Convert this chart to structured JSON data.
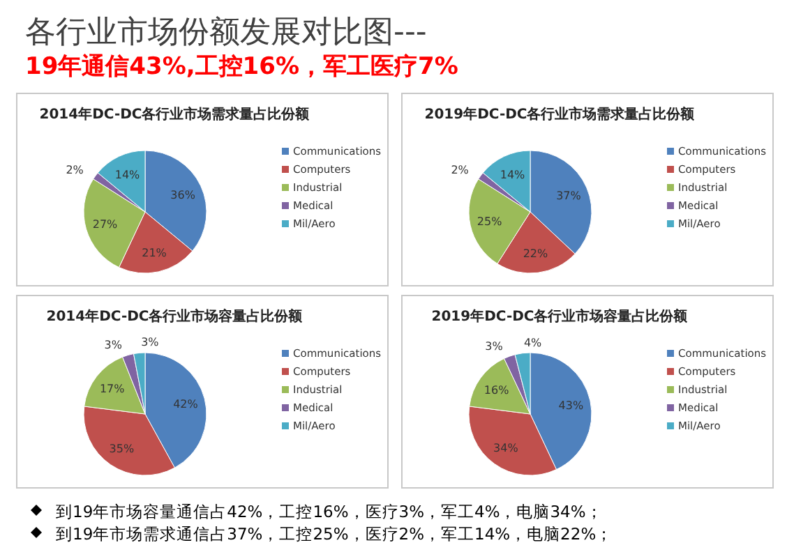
{
  "chart_data": [
    {
      "type": "other",
      "title": "各行业市场份额发展对比图---",
      "subtitle": "19年通信43%,工控16%，军工医疗7%",
      "annotations": [
        "到19年市场容量通信占42%，工控16%，医疗3%，军工4%，电脑34%；",
        "到19年市场需求通信占37%，工控25%，医疗2%，军工14%，电脑22%；"
      ]
    },
    {
      "type": "pie",
      "title": "2014年DC-DC各行业市场需求量占比份额",
      "categories": [
        "Communications",
        "Computers",
        "Industrial",
        "Medical",
        "Mil/Aero"
      ],
      "values": [
        36,
        21,
        27,
        2,
        14
      ],
      "value_labels": [
        "36%",
        "21%",
        "27%",
        "2%",
        "14%"
      ],
      "colors": [
        "#4f81bd",
        "#c0504d",
        "#9bbb59",
        "#8064a2",
        "#4bacc6"
      ],
      "legend": "right"
    },
    {
      "type": "pie",
      "title": "2019年DC-DC各行业市场需求量占比份额",
      "categories": [
        "Communications",
        "Computers",
        "Industrial",
        "Medical",
        "Mil/Aero"
      ],
      "values": [
        37,
        22,
        25,
        2,
        14
      ],
      "value_labels": [
        "37%",
        "22%",
        "25%",
        "2%",
        "14%"
      ],
      "colors": [
        "#4f81bd",
        "#c0504d",
        "#9bbb59",
        "#8064a2",
        "#4bacc6"
      ],
      "legend": "right"
    },
    {
      "type": "pie",
      "title": "2014年DC-DC各行业市场容量占比份额",
      "categories": [
        "Communications",
        "Computers",
        "Industrial",
        "Medical",
        "Mil/Aero"
      ],
      "values": [
        42,
        35,
        17,
        3,
        3
      ],
      "value_labels": [
        "42%",
        "35%",
        "17%",
        "3%",
        "3%"
      ],
      "colors": [
        "#4f81bd",
        "#c0504d",
        "#9bbb59",
        "#8064a2",
        "#4bacc6"
      ],
      "legend": "right"
    },
    {
      "type": "pie",
      "title": "2019年DC-DC各行业市场容量占比份额",
      "categories": [
        "Communications",
        "Computers",
        "Industrial",
        "Medical",
        "Mil/Aero"
      ],
      "values": [
        43,
        34,
        16,
        3,
        4
      ],
      "value_labels": [
        "43%",
        "34%",
        "16%",
        "3%",
        "4%"
      ],
      "colors": [
        "#4f81bd",
        "#c0504d",
        "#9bbb59",
        "#8064a2",
        "#4bacc6"
      ],
      "legend": "right"
    }
  ]
}
